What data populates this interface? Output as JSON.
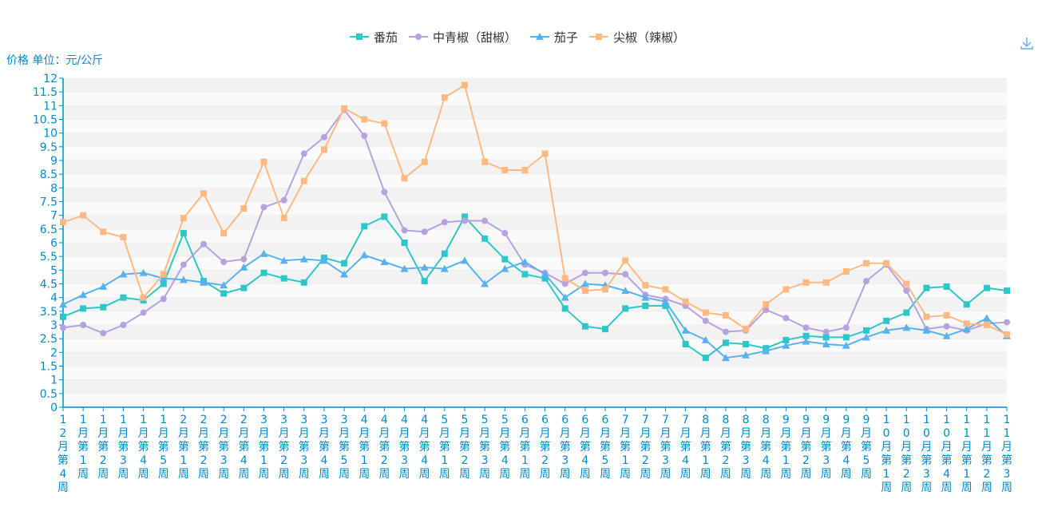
{
  "chart_data": {
    "type": "line",
    "title": "",
    "ylabel": "价格 单位：元/公斤",
    "xlabel": "",
    "ylim": [
      0,
      12
    ],
    "ytick_step": 0.5,
    "grid": true,
    "legend_position": "top-center",
    "categories": [
      "12月第4周",
      "1月第1周",
      "1月第2周",
      "1月第3周",
      "1月第4周",
      "1月第5周",
      "2月第1周",
      "2月第2周",
      "2月第3周",
      "2月第4周",
      "3月第1周",
      "3月第2周",
      "3月第3周",
      "3月第4周",
      "3月第5周",
      "4月第1周",
      "4月第2周",
      "4月第3周",
      "4月第4周",
      "5月第1周",
      "5月第2周",
      "5月第3周",
      "5月第4周",
      "6月第1周",
      "6月第2周",
      "6月第3周",
      "6月第4周",
      "6月第5周",
      "7月第1周",
      "7月第2周",
      "7月第3周",
      "7月第4周",
      "8月第1周",
      "8月第2周",
      "8月第3周",
      "8月第4周",
      "9月第1周",
      "9月第2周",
      "9月第3周",
      "9月第4周",
      "9月第5周",
      "10月第1周",
      "10月第2周",
      "10月第3周",
      "10月第4周",
      "11月第1周",
      "11月第2周",
      "11月第3周"
    ],
    "series": [
      {
        "name": "番茄",
        "color": "#2ec7c9",
        "marker": "square",
        "values": [
          3.3,
          3.6,
          3.65,
          4.0,
          3.9,
          4.5,
          6.35,
          4.6,
          4.15,
          4.35,
          4.9,
          4.7,
          4.55,
          5.45,
          5.25,
          6.6,
          6.95,
          6.0,
          4.6,
          5.6,
          6.95,
          6.15,
          5.4,
          4.85,
          4.7,
          3.6,
          2.95,
          2.85,
          3.6,
          3.7,
          3.7,
          2.3,
          1.8,
          2.35,
          2.3,
          2.15,
          2.45,
          2.6,
          2.55,
          2.55,
          2.8,
          3.15,
          3.45,
          4.35,
          4.4,
          3.75,
          4.35,
          4.25
        ]
      },
      {
        "name": "中青椒（甜椒）",
        "color": "#b6a2de",
        "marker": "circle",
        "values": [
          2.9,
          3.0,
          2.7,
          3.0,
          3.45,
          3.95,
          5.2,
          5.95,
          5.3,
          5.4,
          7.3,
          7.55,
          9.25,
          9.85,
          10.85,
          9.9,
          7.85,
          6.45,
          6.4,
          6.75,
          6.8,
          6.8,
          6.35,
          5.2,
          4.9,
          4.5,
          4.9,
          4.9,
          4.85,
          4.1,
          3.95,
          3.7,
          3.15,
          2.75,
          2.8,
          3.55,
          3.25,
          2.9,
          2.75,
          2.9,
          4.6,
          5.2,
          4.25,
          2.85,
          2.95,
          2.8,
          3.05,
          3.1
        ]
      },
      {
        "name": "茄子",
        "color": "#5ab1ef",
        "marker": "triangle",
        "values": [
          3.75,
          4.1,
          4.4,
          4.85,
          4.9,
          4.7,
          4.65,
          4.55,
          4.45,
          5.1,
          5.6,
          5.35,
          5.4,
          5.35,
          4.85,
          5.55,
          5.3,
          5.05,
          5.1,
          5.05,
          5.35,
          4.5,
          5.05,
          5.3,
          4.85,
          4.0,
          4.5,
          4.45,
          4.25,
          4.0,
          3.85,
          2.8,
          2.45,
          1.8,
          1.9,
          2.05,
          2.25,
          2.4,
          2.3,
          2.25,
          2.55,
          2.8,
          2.9,
          2.8,
          2.6,
          2.85,
          3.25,
          2.6
        ]
      },
      {
        "name": "尖椒（辣椒）",
        "color": "#ffb980",
        "marker": "square",
        "values": [
          6.75,
          7.0,
          6.4,
          6.2,
          4.0,
          4.85,
          6.9,
          7.8,
          6.35,
          7.25,
          8.95,
          6.9,
          8.25,
          9.4,
          10.9,
          10.5,
          10.35,
          8.35,
          8.95,
          11.3,
          11.75,
          8.95,
          8.65,
          8.65,
          9.25,
          4.7,
          4.25,
          4.3,
          5.35,
          4.45,
          4.3,
          3.85,
          3.45,
          3.35,
          2.85,
          3.75,
          4.3,
          4.55,
          4.55,
          4.95,
          5.25,
          5.25,
          4.5,
          3.3,
          3.35,
          3.05,
          3.0,
          2.65
        ]
      }
    ]
  },
  "toolbar": {
    "download_icon": "download-icon"
  }
}
